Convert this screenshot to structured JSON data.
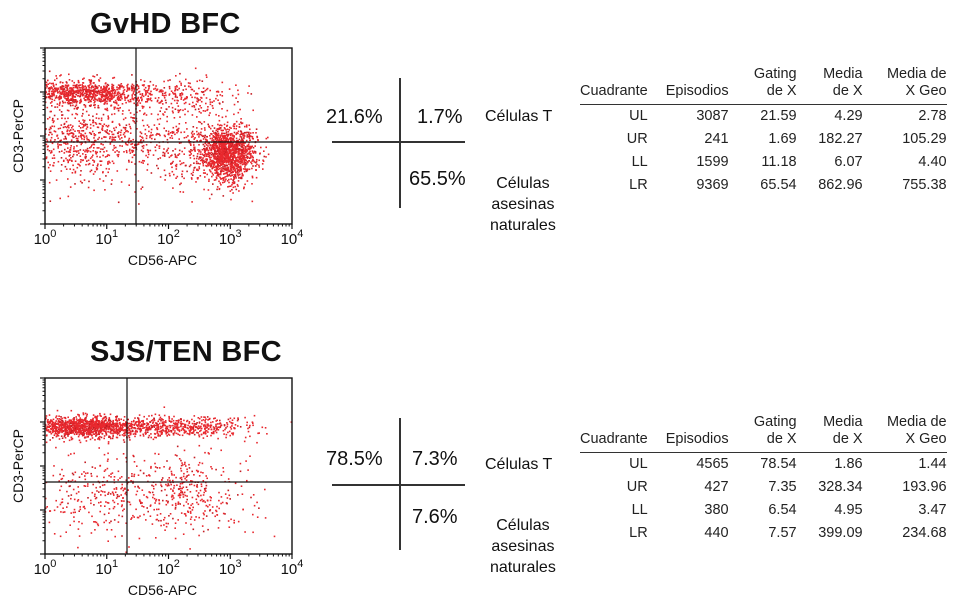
{
  "chart_data": [
    {
      "type": "scatter",
      "title": "GvHD BFC",
      "xlabel": "CD56-APC",
      "ylabel": "CD3-PerCP",
      "x_scale": "log",
      "xlim": [
        1,
        10000
      ],
      "ylim": [
        1,
        10000
      ],
      "x_ticks": [
        "10^0",
        "10^1",
        "10^2",
        "10^3",
        "10^4"
      ],
      "quadrant_gate": {
        "x": 25,
        "y": 280
      },
      "quadrant_percent": {
        "UL": "21.6%",
        "UR": "1.7%",
        "LR": "65.5%"
      },
      "cell_labels": {
        "t_cells": "Células T",
        "nk_cells": [
          "Células",
          "asesinas",
          "naturales"
        ]
      },
      "populations": [
        {
          "x_center": 4,
          "y_center": 1000,
          "x_spread": 0.55,
          "y_spread": 0.14,
          "n": 900
        },
        {
          "x_center": 4,
          "y_center": 80,
          "x_spread": 0.6,
          "y_spread": 0.45,
          "n": 700
        },
        {
          "x_center": 900,
          "y_center": 40,
          "x_spread": 0.22,
          "y_spread": 0.3,
          "n": 1400
        },
        {
          "x_center": 150,
          "y_center": 800,
          "x_spread": 0.45,
          "y_spread": 0.2,
          "n": 220
        },
        {
          "x_center": 150,
          "y_center": 60,
          "x_spread": 0.5,
          "y_spread": 0.5,
          "n": 300
        }
      ],
      "table": {
        "headers": [
          "Cuadrante",
          "Episodios",
          "Gating de X",
          "Media de X",
          "Media de X Geo"
        ],
        "rows": [
          [
            "UL",
            "3087",
            "21.59",
            "4.29",
            "2.78"
          ],
          [
            "UR",
            "241",
            "1.69",
            "182.27",
            "105.29"
          ],
          [
            "LL",
            "1599",
            "11.18",
            "6.07",
            "4.40"
          ],
          [
            "LR",
            "9369",
            "65.54",
            "862.96",
            "755.38"
          ]
        ]
      }
    },
    {
      "type": "scatter",
      "title": "SJS/TEN BFC",
      "xlabel": "CD56-APC",
      "ylabel": "CD3-PerCP",
      "x_scale": "log",
      "xlim": [
        1,
        10000
      ],
      "ylim": [
        1,
        10000
      ],
      "x_ticks": [
        "10^0",
        "10^1",
        "10^2",
        "10^3",
        "10^4"
      ],
      "quadrant_gate": {
        "x": 20,
        "y": 150
      },
      "quadrant_percent": {
        "UL": "78.5%",
        "UR": "7.3%",
        "LR": "7.6%"
      },
      "cell_labels": {
        "t_cells": "Células T",
        "nk_cells": [
          "Células",
          "asesinas",
          "naturales"
        ]
      },
      "populations": [
        {
          "x_center": 4,
          "y_center": 800,
          "x_spread": 0.55,
          "y_spread": 0.12,
          "n": 1300
        },
        {
          "x_center": 180,
          "y_center": 800,
          "x_spread": 0.55,
          "y_spread": 0.12,
          "n": 450
        },
        {
          "x_center": 6,
          "y_center": 25,
          "x_spread": 0.6,
          "y_spread": 0.45,
          "n": 300
        },
        {
          "x_center": 200,
          "y_center": 25,
          "x_spread": 0.5,
          "y_spread": 0.45,
          "n": 350
        }
      ],
      "table": {
        "headers": [
          "Cuadrante",
          "Episodios",
          "Gating de X",
          "Media de X",
          "Media de X Geo"
        ],
        "rows": [
          [
            "UL",
            "4565",
            "78.54",
            "1.86",
            "1.44"
          ],
          [
            "UR",
            "427",
            "7.35",
            "328.34",
            "193.96"
          ],
          [
            "LL",
            "380",
            "6.54",
            "4.95",
            "3.47"
          ],
          [
            "LR",
            "440",
            "7.57",
            "399.09",
            "234.68"
          ]
        ]
      }
    }
  ]
}
